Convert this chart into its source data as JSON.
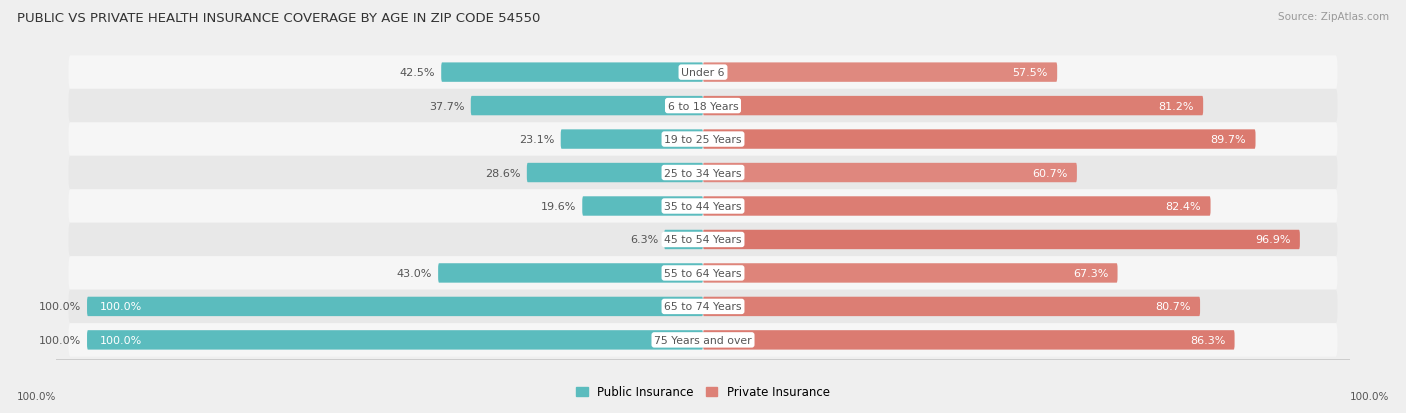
{
  "title": "PUBLIC VS PRIVATE HEALTH INSURANCE COVERAGE BY AGE IN ZIP CODE 54550",
  "source": "Source: ZipAtlas.com",
  "categories": [
    "Under 6",
    "6 to 18 Years",
    "19 to 25 Years",
    "25 to 34 Years",
    "35 to 44 Years",
    "45 to 54 Years",
    "55 to 64 Years",
    "65 to 74 Years",
    "75 Years and over"
  ],
  "public_values": [
    42.5,
    37.7,
    23.1,
    28.6,
    19.6,
    6.3,
    43.0,
    100.0,
    100.0
  ],
  "private_values": [
    57.5,
    81.2,
    89.7,
    60.7,
    82.4,
    96.9,
    67.3,
    80.7,
    86.3
  ],
  "public_color": "#5bbcbe",
  "private_color_light": "#e8a49c",
  "private_color_dark": "#d9756a",
  "bg_color": "#efefef",
  "row_bg_even": "#f6f6f6",
  "row_bg_odd": "#e8e8e8",
  "label_dark": "#555555",
  "label_white": "#ffffff",
  "title_color": "#333333",
  "source_color": "#999999",
  "max_value": 100.0,
  "figsize": [
    14.06,
    4.14
  ],
  "dpi": 100
}
